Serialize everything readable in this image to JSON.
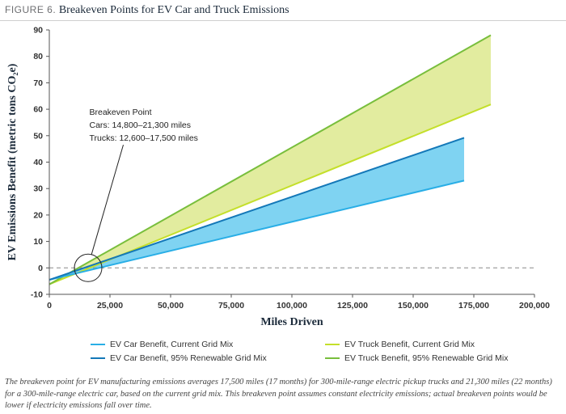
{
  "figure": {
    "label": "FIGURE 6.",
    "title": "Breakeven Points for EV Car and Truck Emissions"
  },
  "caption": "The breakeven point for EV manufacturing emissions averages 17,500 miles (17 months) for 300-mile-range electric pickup trucks and 21,300 miles (22 months) for a 300-mile-range electric car, based on the current grid mix. This breakeven point assumes constant electricity emissions; actual breakeven points would be lower if electricity emissions fall over time.",
  "colors": {
    "car_current": "#29aee6",
    "car_renewable": "#1478b8",
    "car_fill": "#7fd3f2",
    "truck_current": "#c4df2a",
    "truck_renewable": "#78be3c",
    "truck_fill": "#e2ec9f",
    "zero_line": "#888888",
    "axis": "#555555"
  },
  "chart_data": {
    "type": "line",
    "xlabel": "Miles Driven",
    "ylabel": "EV Emissions Benefit (metric tons CO₂e)",
    "xlim": [
      0,
      200000
    ],
    "ylim": [
      -10,
      90
    ],
    "x_ticks": [
      "0",
      "25,000",
      "50,000",
      "75,000",
      "100,000",
      "125,000",
      "150,000",
      "175,000",
      "200,000"
    ],
    "y_ticks": [
      "-10",
      "0",
      "10",
      "20",
      "30",
      "40",
      "50",
      "60",
      "70",
      "80",
      "90"
    ],
    "grid": false,
    "legend_position": "bottom",
    "series": [
      {
        "name": "EV Car Benefit, Current Grid Mix",
        "x": [
          0,
          171000
        ],
        "y": [
          -4.5,
          33
        ]
      },
      {
        "name": "EV Car Benefit, 95% Renewable Grid Mix",
        "x": [
          0,
          171000
        ],
        "y": [
          -4.5,
          49.2
        ]
      },
      {
        "name": "EV Truck Benefit, Current Grid Mix",
        "x": [
          0,
          182000
        ],
        "y": [
          -6.2,
          61.8
        ]
      },
      {
        "name": "EV Truck Benefit, 95% Renewable Grid Mix",
        "x": [
          0,
          182000
        ],
        "y": [
          -6.2,
          88
        ]
      }
    ],
    "annotation": {
      "title": "Breakeven Point",
      "line1": "Cars: 14,800–21,300 miles",
      "line2": "Trucks: 12,600–17,500 miles",
      "x": 16000,
      "y": 0,
      "text_x": 16500,
      "text_y": 60
    }
  },
  "legend": {
    "car_current": "EV Car Benefit, Current Grid Mix",
    "car_renewable": "EV Car Benefit, 95% Renewable Grid Mix",
    "truck_current": "EV Truck Benefit, Current Grid Mix",
    "truck_renewable": "EV Truck Benefit, 95% Renewable Grid Mix"
  }
}
